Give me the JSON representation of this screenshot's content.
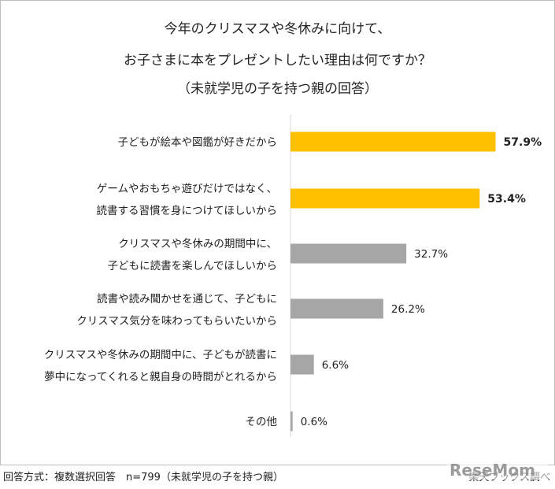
{
  "title_lines": [
    "今年のクリスマスや冬休みに向けて、",
    "お子さまに本をプレゼントしたい理由は何ですか？",
    "（未就学児の子を持つ親の回答）"
  ],
  "chart_data": {
    "type": "bar",
    "orientation": "horizontal",
    "categories": [
      [
        "子どもが絵本や図鑑が好きだから"
      ],
      [
        "ゲームやおもちゃ遊びだけではなく、",
        "読書する習慣を身につけてほしいから"
      ],
      [
        "クリスマスや冬休みの期間中に、",
        "子どもに読書を楽しんでほしいから"
      ],
      [
        "読書や読み聞かせを通じて、子どもに",
        "クリスマス気分を味わってもらいたいから"
      ],
      [
        "クリスマスや冬休みの期間中に、子どもが読書に",
        "夢中になってくれると親自身の時間がとれるから"
      ],
      [
        "その他"
      ]
    ],
    "values": [
      57.9,
      53.4,
      32.7,
      26.2,
      6.6,
      0.6
    ],
    "value_labels": [
      "57.9%",
      "53.4%",
      "32.7%",
      "26.2%",
      "6.6%",
      "0.6%"
    ],
    "highlight": [
      true,
      true,
      false,
      false,
      false,
      false
    ],
    "colors": {
      "highlight": "#FFC000",
      "normal": "#A6A6A6",
      "axis": "#D9D9D9"
    },
    "unit": "%"
  },
  "footer": {
    "method": "回答方式：複数選択回答　n=799（未就学児の子を持つ親）",
    "source": "楽天ブックス調べ"
  },
  "logo": {
    "text": "ReseMom"
  }
}
